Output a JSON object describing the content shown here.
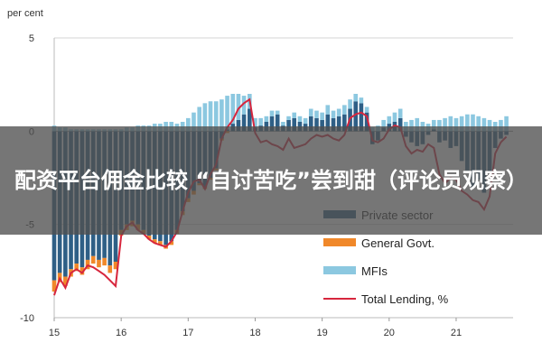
{
  "overlay": {
    "caption": "配资平台佣金比较 “自讨苦吃”尝到甜（评论员观察）"
  },
  "chart_data": {
    "type": "bar",
    "ylabel": "per cent",
    "ylim": [
      -10,
      5
    ],
    "yticks": [
      5,
      0,
      -5,
      -10
    ],
    "xticks": [
      "15",
      "16",
      "17",
      "18",
      "19",
      "20",
      "21"
    ],
    "xlim": [
      15,
      21.85
    ],
    "grid": "horizontal",
    "legend_position": "bottom-right",
    "colors": {
      "private": "#2e5f86",
      "govt": "#f0882a",
      "mfi": "#8cc8e0",
      "total": "#d7263d"
    },
    "legend": [
      "Private sector",
      "General Govt.",
      "MFIs",
      "Total Lending, %"
    ],
    "x": [
      15.0,
      15.083,
      15.167,
      15.25,
      15.333,
      15.417,
      15.5,
      15.583,
      15.667,
      15.75,
      15.833,
      15.917,
      16.0,
      16.083,
      16.167,
      16.25,
      16.333,
      16.417,
      16.5,
      16.583,
      16.667,
      16.75,
      16.833,
      16.917,
      17.0,
      17.083,
      17.167,
      17.25,
      17.333,
      17.417,
      17.5,
      17.583,
      17.667,
      17.75,
      17.833,
      17.917,
      18.0,
      18.083,
      18.167,
      18.25,
      18.333,
      18.417,
      18.5,
      18.583,
      18.667,
      18.75,
      18.833,
      18.917,
      19.0,
      19.083,
      19.167,
      19.25,
      19.333,
      19.417,
      19.5,
      19.583,
      19.667,
      19.75,
      19.833,
      19.917,
      20.0,
      20.083,
      20.167,
      20.25,
      20.333,
      20.417,
      20.5,
      20.583,
      20.667,
      20.75,
      20.833,
      20.917,
      21.0,
      21.083,
      21.167,
      21.25,
      21.333,
      21.417,
      21.5,
      21.583,
      21.667,
      21.75
    ],
    "series": [
      {
        "name": "Private sector",
        "values": [
          -8.0,
          -7.6,
          -7.8,
          -7.4,
          -7.1,
          -7.3,
          -6.9,
          -6.7,
          -6.9,
          -6.8,
          -7.2,
          -7.0,
          -5.3,
          -5.0,
          -4.8,
          -5.0,
          -5.3,
          -5.6,
          -5.8,
          -5.9,
          -6.1,
          -5.9,
          -5.3,
          -4.3,
          -3.6,
          -3.2,
          -2.8,
          -3.0,
          -2.5,
          -2.0,
          -0.4,
          0.1,
          0.4,
          0.6,
          0.9,
          1.2,
          0.2,
          0.3,
          0.5,
          0.8,
          0.9,
          0.3,
          0.6,
          0.7,
          0.5,
          0.4,
          0.8,
          0.7,
          0.6,
          0.9,
          0.7,
          0.8,
          0.9,
          1.2,
          1.6,
          1.5,
          1.0,
          -0.7,
          -0.5,
          0.2,
          0.4,
          0.5,
          0.7,
          -0.3,
          -0.6,
          -0.8,
          -0.7,
          -0.2,
          0.1,
          -0.6,
          -0.5,
          -0.9,
          -0.8,
          -1.6,
          -2.1,
          -3.0,
          -2.6,
          -3.3,
          -2.2,
          -0.9,
          -0.4,
          -0.2
        ]
      },
      {
        "name": "General Govt.",
        "values": [
          -0.6,
          -0.5,
          -0.5,
          -0.4,
          -0.4,
          -0.4,
          -0.5,
          -0.4,
          -0.4,
          -0.4,
          -0.4,
          -0.4,
          -0.3,
          -0.3,
          -0.3,
          -0.3,
          -0.2,
          -0.2,
          -0.2,
          -0.2,
          -0.2,
          -0.2,
          -0.2,
          -0.2,
          -0.2,
          -0.2,
          -0.1,
          -0.1,
          -0.1,
          -0.1,
          -0.1,
          -0.1,
          0,
          0,
          0,
          0,
          0,
          0,
          0,
          0,
          0,
          0,
          0,
          0,
          0,
          0,
          0,
          0,
          0,
          0,
          0,
          0,
          0,
          0,
          0,
          0,
          0,
          0,
          0,
          0,
          0,
          0,
          0,
          0,
          0,
          0,
          0,
          0,
          0,
          0,
          0,
          0,
          0,
          0,
          0,
          0,
          0,
          0,
          0,
          0,
          0,
          0
        ]
      },
      {
        "name": "MFIs",
        "values": [
          0.3,
          0.2,
          0.2,
          0.1,
          0.1,
          0.1,
          0.1,
          0.1,
          0.1,
          0.1,
          0.1,
          0.1,
          0.1,
          0.2,
          0.2,
          0.3,
          0.3,
          0.3,
          0.4,
          0.4,
          0.5,
          0.5,
          0.4,
          0.5,
          0.7,
          1.0,
          1.3,
          1.5,
          1.6,
          1.6,
          1.7,
          1.8,
          1.6,
          1.4,
          1.0,
          0.8,
          0.5,
          0.4,
          0.3,
          0.3,
          0.2,
          0.2,
          0.2,
          0.3,
          0.3,
          0.3,
          0.4,
          0.4,
          0.4,
          0.5,
          0.4,
          0.4,
          0.5,
          0.5,
          0.4,
          0.3,
          0.3,
          0.2,
          0.3,
          0.4,
          0.4,
          0.5,
          0.5,
          0.5,
          0.6,
          0.7,
          0.5,
          0.4,
          0.5,
          0.6,
          0.7,
          0.8,
          0.7,
          0.8,
          0.9,
          0.9,
          0.8,
          0.7,
          0.6,
          0.5,
          0.6,
          0.8
        ]
      },
      {
        "name": "Total Lending, %",
        "values": [
          -8.8,
          -7.9,
          -8.4,
          -7.6,
          -7.4,
          -7.6,
          -7.2,
          -7.3,
          -7.5,
          -7.7,
          -8.0,
          -8.3,
          -5.6,
          -5.1,
          -4.9,
          -5.3,
          -5.5,
          -5.8,
          -6.0,
          -6.1,
          -6.2,
          -5.9,
          -5.4,
          -4.3,
          -3.3,
          -2.7,
          -2.6,
          -3.1,
          -2.3,
          -1.8,
          -0.4,
          0.2,
          0.6,
          1.2,
          1.5,
          1.7,
          -0.1,
          -0.6,
          -0.5,
          -0.7,
          -0.8,
          -1.0,
          -0.4,
          -0.9,
          -0.8,
          -0.7,
          -0.4,
          -0.2,
          -0.3,
          -0.2,
          -0.4,
          -0.5,
          -0.2,
          0.7,
          0.9,
          1.0,
          0.8,
          -0.5,
          -0.6,
          -0.4,
          0.1,
          0.3,
          0.2,
          -0.8,
          -1.2,
          -1.0,
          -1.1,
          -0.7,
          -0.9,
          -2.3,
          -2.8,
          -2.5,
          -2.6,
          -3.2,
          -3.4,
          -3.7,
          -3.8,
          -4.2,
          -3.5,
          -1.2,
          -0.6,
          -0.3
        ]
      }
    ]
  }
}
